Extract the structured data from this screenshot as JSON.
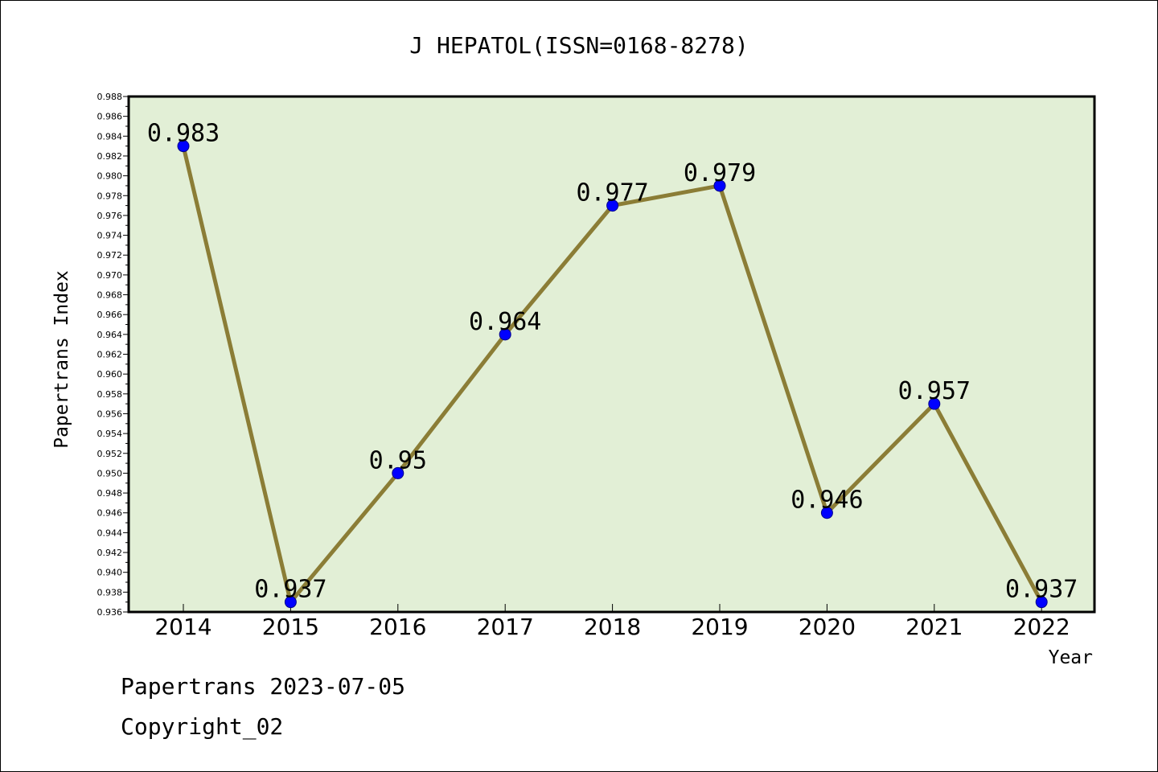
{
  "chart_data": {
    "type": "line",
    "title": "J HEPATOL(ISSN=0168-8278)",
    "xlabel": "Year",
    "ylabel": "Papertrans Index",
    "categories": [
      "2014",
      "2015",
      "2016",
      "2017",
      "2018",
      "2019",
      "2020",
      "2021",
      "2022"
    ],
    "values": [
      0.983,
      0.937,
      0.95,
      0.964,
      0.977,
      0.979,
      0.946,
      0.957,
      0.937
    ],
    "data_labels": [
      "0.983",
      "0.937",
      "0.95",
      "0.964",
      "0.977",
      "0.979",
      "0.946",
      "0.957",
      "0.937"
    ],
    "ylim": [
      0.936,
      0.988
    ],
    "ytick_step": 0.002,
    "ytick_decimals": 3,
    "grid": false,
    "colors": {
      "plot_background": "#e2efd6",
      "line": "#8b7d36",
      "marker": "#0000ff",
      "marker_edge": "#00008b"
    }
  },
  "footer": {
    "line1": "Papertrans 2023-07-05",
    "line2": "Copyright_02"
  }
}
